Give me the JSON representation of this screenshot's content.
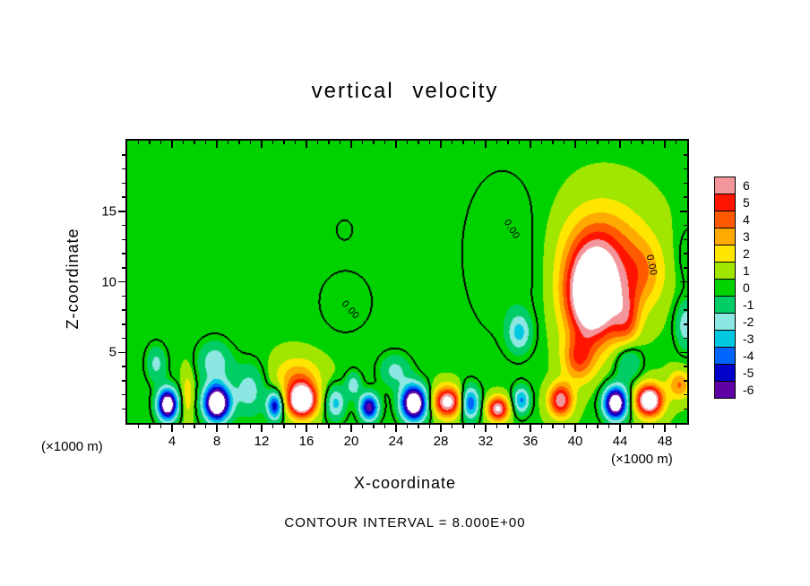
{
  "chart_data": {
    "type": "heatmap",
    "title": "vertical velocity",
    "xlabel": "X-coordinate",
    "ylabel": "Z-coordinate",
    "units": "(×1000 m)",
    "contour_interval_label": "CONTOUR INTERVAL = 8.000E+00",
    "x_range": [
      0,
      50
    ],
    "z_range": [
      0,
      20
    ],
    "x_tick_labels": [
      4,
      8,
      12,
      16,
      20,
      24,
      28,
      32,
      36,
      40,
      44,
      48
    ],
    "z_tick_labels": [
      5,
      10,
      15
    ],
    "x_minor_step": 1,
    "x_major_step": 4,
    "z_minor_step": 1,
    "z_major_step": 5,
    "colorbar": {
      "labels": [
        6,
        5,
        4,
        3,
        2,
        1,
        0,
        -1,
        -2,
        -3,
        -4,
        -5,
        -6
      ],
      "colors": [
        "#f2969b",
        "#ff1400",
        "#ff5a00",
        "#ffaa00",
        "#ffe600",
        "#a0e600",
        "#00d200",
        "#00cd66",
        "#8ce6e1",
        "#00c8e1",
        "#0064ff",
        "#0000c8",
        "#5f00a5"
      ],
      "over_color": "#ffffff",
      "under_color": "#ffffff"
    },
    "background_value": 0.4,
    "features": [
      {
        "x": 3.6,
        "z": 1.3,
        "sx": 0.9,
        "sz": 1.1,
        "a": -9.0
      },
      {
        "x": 2.6,
        "z": 4.2,
        "sx": 0.9,
        "sz": 1.3,
        "a": -2.2
      },
      {
        "x": 5.4,
        "z": 2.0,
        "sx": 0.55,
        "sz": 1.8,
        "a": 1.8
      },
      {
        "x": 8.0,
        "z": 1.4,
        "sx": 1.15,
        "sz": 1.25,
        "a": -10.0
      },
      {
        "x": 7.8,
        "z": 4.3,
        "sx": 1.5,
        "sz": 1.5,
        "a": -2.6
      },
      {
        "x": 10.9,
        "z": 2.3,
        "sx": 1.5,
        "sz": 1.9,
        "a": -2.4
      },
      {
        "x": 13.2,
        "z": 1.2,
        "sx": 0.7,
        "sz": 1.0,
        "a": -5.5
      },
      {
        "x": 15.6,
        "z": 1.6,
        "sx": 1.25,
        "sz": 1.15,
        "a": 9.5
      },
      {
        "x": 15.2,
        "z": 3.3,
        "sx": 2.1,
        "sz": 1.4,
        "a": 2.6
      },
      {
        "x": 18.6,
        "z": 1.4,
        "sx": 0.9,
        "sz": 1.2,
        "a": -3.2
      },
      {
        "x": 20.2,
        "z": 2.7,
        "sx": 0.7,
        "sz": 0.9,
        "a": -2.5
      },
      {
        "x": 21.6,
        "z": 1.1,
        "sx": 0.85,
        "sz": 0.95,
        "a": -6.5
      },
      {
        "x": 25.6,
        "z": 1.4,
        "sx": 1.15,
        "sz": 1.25,
        "a": -9.5
      },
      {
        "x": 23.9,
        "z": 3.7,
        "sx": 1.4,
        "sz": 1.2,
        "a": -2.2
      },
      {
        "x": 28.6,
        "z": 1.5,
        "sx": 1.25,
        "sz": 1.05,
        "a": 7.0
      },
      {
        "x": 30.6,
        "z": 1.4,
        "sx": 0.85,
        "sz": 1.15,
        "a": -5.0
      },
      {
        "x": 33.1,
        "z": 1.0,
        "sx": 0.95,
        "sz": 0.85,
        "a": 6.5
      },
      {
        "x": 35.2,
        "z": 1.6,
        "sx": 0.75,
        "sz": 0.95,
        "a": -4.0
      },
      {
        "x": 35.0,
        "z": 6.4,
        "sx": 1.05,
        "sz": 1.35,
        "a": -3.0
      },
      {
        "x": 38.7,
        "z": 1.6,
        "sx": 1.05,
        "sz": 1.15,
        "a": 6.0
      },
      {
        "x": 40.3,
        "z": 4.5,
        "sx": 1.4,
        "sz": 1.6,
        "a": 3.5
      },
      {
        "x": 41.6,
        "z": 9.0,
        "sx": 2.4,
        "sz": 3.2,
        "a": 10.0
      },
      {
        "x": 42.5,
        "z": 12.5,
        "sx": 3.6,
        "sz": 3.2,
        "a": 3.2
      },
      {
        "x": 46.0,
        "z": 10.5,
        "sx": 2.0,
        "sz": 2.5,
        "a": 2.5
      },
      {
        "x": 44.6,
        "z": 7.2,
        "sx": 1.2,
        "sz": 2.2,
        "a": 3.2
      },
      {
        "x": 43.6,
        "z": 1.4,
        "sx": 1.05,
        "sz": 1.15,
        "a": -9.0
      },
      {
        "x": 44.7,
        "z": 4.5,
        "sx": 1.2,
        "sz": 1.5,
        "a": -2.6
      },
      {
        "x": 46.6,
        "z": 1.6,
        "sx": 1.2,
        "sz": 1.1,
        "a": 8.5
      },
      {
        "x": 49.3,
        "z": 2.7,
        "sx": 1.0,
        "sz": 1.0,
        "a": 3.2
      },
      {
        "x": 49.9,
        "z": 6.9,
        "sx": 0.95,
        "sz": 1.7,
        "a": -2.6
      },
      {
        "x": 19.5,
        "z": 8.6,
        "sx": 2.7,
        "sz": 2.5,
        "a": -0.85
      },
      {
        "x": 19.4,
        "z": 13.7,
        "sx": 0.9,
        "sz": 0.9,
        "a": -0.7
      },
      {
        "x": 33.5,
        "z": 12.0,
        "sx": 4.0,
        "sz": 6.5,
        "a": -0.9
      },
      {
        "x": 50.3,
        "z": 11.8,
        "sx": 1.4,
        "sz": 2.3,
        "a": -0.95
      }
    ],
    "zero_contour_labels": [
      {
        "text": "0.00",
        "x": 34.3,
        "z": 13.7,
        "rot": 58
      },
      {
        "text": "0.00",
        "x": 19.9,
        "z": 8.0,
        "rot": 48
      },
      {
        "text": "0.00",
        "x": 46.8,
        "z": 11.2,
        "rot": 78
      }
    ]
  }
}
